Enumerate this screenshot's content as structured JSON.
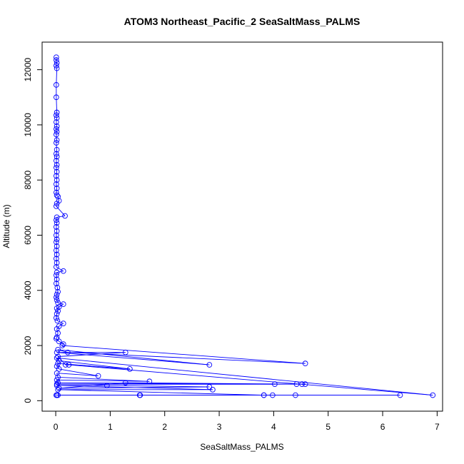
{
  "chart_data": {
    "type": "line",
    "title": "ATOM3 Northeast_Pacific_2 SeaSaltMass_PALMS",
    "xlabel": "SeaSaltMass_PALMS",
    "ylabel": "Altitude (m)",
    "xlim": [
      -0.25,
      7.1
    ],
    "ylim": [
      -380,
      13000
    ],
    "xticks": [
      0,
      1,
      2,
      3,
      4,
      5,
      6,
      7
    ],
    "yticks": [
      0,
      2000,
      4000,
      6000,
      8000,
      10000,
      12000
    ],
    "grid": false,
    "legend": "none",
    "series_color": "#0000ff",
    "marker": "open-circle",
    "series": [
      {
        "points": [
          [
            0.01,
            12450
          ],
          [
            0.01,
            12350
          ],
          [
            0.02,
            12250
          ],
          [
            0.01,
            12150
          ],
          [
            0.02,
            12050
          ],
          [
            0.01,
            11450
          ],
          [
            0.01,
            11000
          ],
          [
            0.02,
            10450
          ],
          [
            0.01,
            10350
          ],
          [
            0.02,
            10250
          ],
          [
            0.01,
            10100
          ],
          [
            0.02,
            9950
          ],
          [
            0.01,
            9850
          ],
          [
            0.02,
            9750
          ],
          [
            0.01,
            9650
          ],
          [
            0.02,
            9450
          ],
          [
            0.01,
            9350
          ],
          [
            0.02,
            9100
          ],
          [
            0.01,
            8950
          ],
          [
            0.02,
            8850
          ],
          [
            0.01,
            8700
          ],
          [
            0.02,
            8550
          ],
          [
            0.01,
            8450
          ],
          [
            0.02,
            8300
          ],
          [
            0.01,
            8150
          ],
          [
            0.02,
            8000
          ],
          [
            0.01,
            7850
          ],
          [
            0.02,
            7700
          ],
          [
            0.01,
            7550
          ],
          [
            0.02,
            7450
          ],
          [
            0.04,
            7400
          ],
          [
            0.06,
            7250
          ],
          [
            0.02,
            7150
          ],
          [
            0.01,
            7050
          ],
          [
            0.17,
            6700
          ],
          [
            0.02,
            6650
          ],
          [
            0.01,
            6550
          ],
          [
            0.02,
            6450
          ],
          [
            0.01,
            6300
          ],
          [
            0.02,
            6150
          ],
          [
            0.01,
            6000
          ],
          [
            0.02,
            5850
          ],
          [
            0.01,
            5750
          ],
          [
            0.02,
            5600
          ],
          [
            0.01,
            5450
          ],
          [
            0.02,
            5300
          ],
          [
            0.01,
            5150
          ],
          [
            0.02,
            5000
          ],
          [
            0.01,
            4850
          ],
          [
            0.14,
            4700
          ],
          [
            0.02,
            4650
          ],
          [
            0.01,
            4550
          ],
          [
            0.02,
            4400
          ],
          [
            0.01,
            4250
          ],
          [
            0.03,
            4100
          ],
          [
            0.04,
            3950
          ],
          [
            0.02,
            3850
          ],
          [
            0.01,
            3750
          ],
          [
            0.02,
            3650
          ],
          [
            0.04,
            3550
          ],
          [
            0.14,
            3500
          ],
          [
            0.06,
            3400
          ],
          [
            0.02,
            3350
          ],
          [
            0.04,
            3250
          ],
          [
            0.02,
            3150
          ],
          [
            0.01,
            3000
          ],
          [
            0.03,
            2900
          ],
          [
            0.14,
            2800
          ],
          [
            0.06,
            2700
          ],
          [
            0.02,
            2600
          ],
          [
            0.04,
            2450
          ],
          [
            0.02,
            2300
          ],
          [
            0.01,
            2250
          ],
          [
            0.06,
            2150
          ],
          [
            0.14,
            2050
          ],
          [
            0.12,
            2000
          ],
          [
            4.58,
            1350
          ],
          [
            0.22,
            1750
          ],
          [
            0.04,
            1850
          ],
          [
            2.82,
            1300
          ],
          [
            0.02,
            1750
          ],
          [
            1.28,
            1750
          ],
          [
            0.04,
            1600
          ],
          [
            0.18,
            1300
          ],
          [
            0.24,
            1300
          ],
          [
            6.92,
            200
          ],
          [
            0.02,
            1550
          ],
          [
            0.06,
            1450
          ],
          [
            1.36,
            1150
          ],
          [
            0.04,
            1350
          ],
          [
            0.02,
            1250
          ],
          [
            0.06,
            1150
          ],
          [
            0.78,
            900
          ],
          [
            0.02,
            1000
          ],
          [
            0.04,
            850
          ],
          [
            1.72,
            700
          ],
          [
            0.02,
            750
          ],
          [
            0.04,
            650
          ],
          [
            4.02,
            600
          ],
          [
            0.02,
            600
          ],
          [
            4.42,
            600
          ],
          [
            4.52,
            600
          ],
          [
            4.58,
            600
          ],
          [
            1.28,
            650
          ],
          [
            0.06,
            450
          ],
          [
            2.82,
            500
          ],
          [
            0.94,
            550
          ],
          [
            0.02,
            550
          ],
          [
            2.88,
            400
          ],
          [
            0.04,
            400
          ],
          [
            3.82,
            200
          ],
          [
            3.82,
            200
          ],
          [
            4.4,
            200
          ],
          [
            6.32,
            200
          ],
          [
            0.02,
            200
          ],
          [
            1.54,
            200
          ],
          [
            1.55,
            200
          ],
          [
            0.04,
            200
          ],
          [
            3.98,
            200
          ],
          [
            0.01,
            200
          ]
        ]
      }
    ]
  }
}
